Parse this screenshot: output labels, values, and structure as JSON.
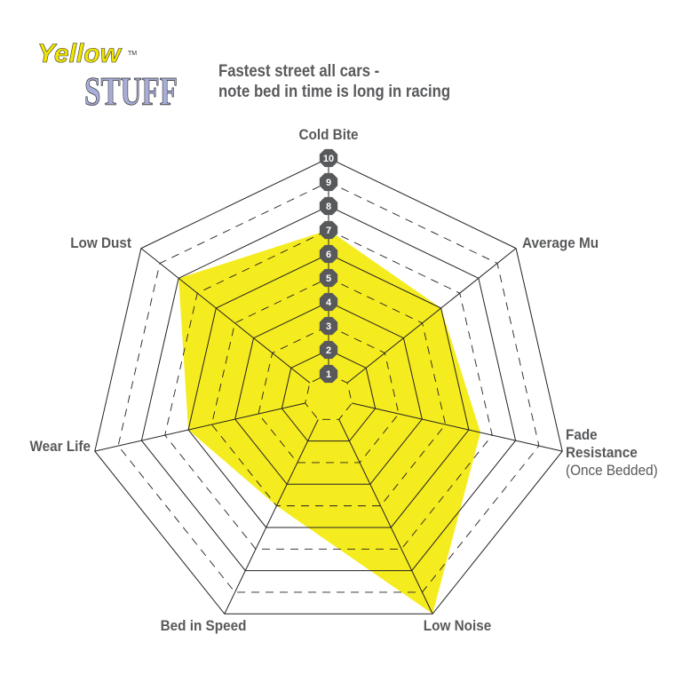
{
  "logo": {
    "text_line1": "Yellow",
    "text_line2": "STUFF",
    "trademark": "TM",
    "colors": {
      "yellow": "#f2e600",
      "lavender": "#a9aed9"
    }
  },
  "subtitle_lines": [
    "Fastest street all cars -",
    "note bed in time is long in racing"
  ],
  "chart_data": {
    "type": "radar",
    "title": "",
    "axes": [
      {
        "label": "Cold Bite",
        "sublabel": ""
      },
      {
        "label": "Average Mu",
        "sublabel": ""
      },
      {
        "label": "Fade Resistance",
        "label_lines": [
          "Fade",
          "Resistance"
        ],
        "sublabel": "(Once Bedded)"
      },
      {
        "label": "Low Noise",
        "sublabel": ""
      },
      {
        "label": "Bed in Speed",
        "sublabel": ""
      },
      {
        "label": "Wear Life",
        "sublabel": ""
      },
      {
        "label": "Low Dust",
        "sublabel": ""
      }
    ],
    "values": [
      7,
      6,
      6.5,
      10,
      5,
      6,
      8
    ],
    "range": [
      0,
      10
    ],
    "tick_labels": [
      "1",
      "2",
      "3",
      "4",
      "5",
      "6",
      "7",
      "8",
      "9",
      "10"
    ],
    "grid": true,
    "fill_color": "#f5ec1f",
    "grid_color": "#231f20",
    "tick_badge_color": "#58595b"
  }
}
